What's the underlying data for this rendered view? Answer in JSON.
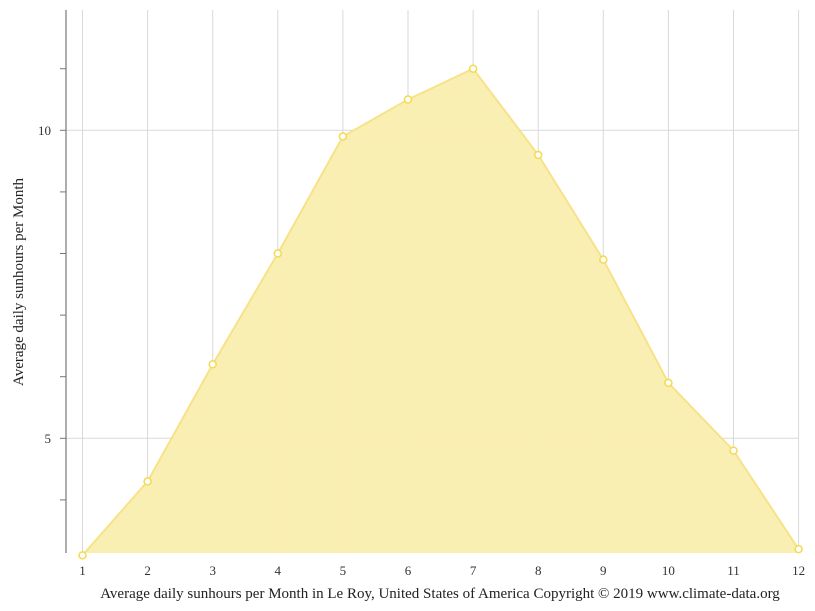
{
  "chart_data": {
    "type": "area",
    "title": "Average daily sunhours per Month in Le Roy, United States of America Copyright © 2019 www.climate-data.org",
    "xlabel": "",
    "ylabel": "Average daily sunhours per Month",
    "categories": [
      "1",
      "2",
      "3",
      "4",
      "5",
      "6",
      "7",
      "8",
      "9",
      "10",
      "11",
      "12"
    ],
    "series": [
      {
        "name": "Average daily sunhours",
        "values": [
          3.1,
          4.3,
          6.2,
          8.0,
          9.9,
          10.5,
          11.0,
          9.6,
          7.9,
          5.9,
          4.8,
          3.2
        ]
      }
    ],
    "yticks": [
      5,
      10
    ],
    "ylim": [
      3.13,
      11.95
    ],
    "grid": true,
    "legend": "none",
    "colors": {
      "fill": "#faeeae",
      "stroke": "#f8e288",
      "marker": "#f5d94e",
      "grid": "#d9d9d9",
      "axis": "#777777"
    }
  },
  "axis": {
    "y_tick_labels": [
      "10",
      "5"
    ]
  }
}
